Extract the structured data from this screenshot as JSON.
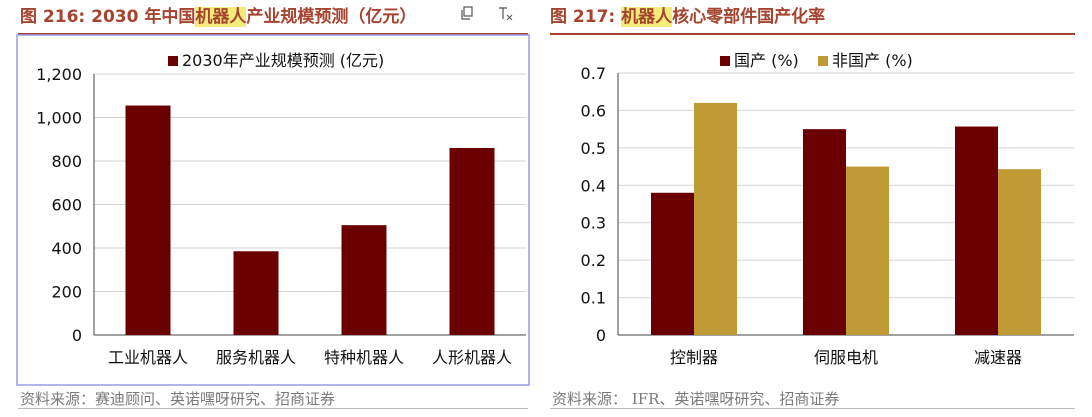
{
  "colors": {
    "dark_red": "#6b0000",
    "gold": "#c09a35",
    "title": "#a5432f",
    "highlight": "#f4ec7a"
  },
  "left": {
    "title_prefix": "图 216:",
    "title_pre": "2030 年中国",
    "title_hl": "机器人",
    "title_post": "产业规模预测（亿元）",
    "source": "资料来源：赛迪顾问、英诺嘿呀研究、招商证券",
    "icons": [
      "copy-icon",
      "text-cursor-icon"
    ]
  },
  "right": {
    "title_prefix": "图 217:",
    "title_hl": "机器人",
    "title_post": "核心零部件国产化率",
    "source": "资料来源：  IFR、英诺嘿呀研究、招商证券"
  },
  "chart_data": [
    {
      "type": "bar",
      "categories": [
        "工业机器人",
        "服务机器人",
        "特种机器人",
        "人形机器人"
      ],
      "series": [
        {
          "name": "2030年产业规模预测 (亿元)",
          "values": [
            1055,
            385,
            505,
            860
          ],
          "color": "#6b0000"
        }
      ],
      "ylim": [
        0,
        1200
      ],
      "yticks": [
        0,
        200,
        400,
        600,
        800,
        1000,
        1200
      ],
      "ytick_labels": [
        "0",
        "200",
        "400",
        "600",
        "800",
        "1,000",
        "1,200"
      ],
      "grid": true,
      "legend": "top"
    },
    {
      "type": "bar",
      "categories": [
        "控制器",
        "伺服电机",
        "减速器"
      ],
      "series": [
        {
          "name": "国产 (%)",
          "values": [
            0.38,
            0.55,
            0.557
          ],
          "color": "#6b0000"
        },
        {
          "name": "非国产 (%)",
          "values": [
            0.62,
            0.45,
            0.443
          ],
          "color": "#c09a35"
        }
      ],
      "ylim": [
        0,
        0.7
      ],
      "yticks": [
        0,
        0.1,
        0.2,
        0.3,
        0.4,
        0.5,
        0.6,
        0.7
      ],
      "ytick_labels": [
        "0",
        "0.1",
        "0.2",
        "0.3",
        "0.4",
        "0.5",
        "0.6",
        "0.7"
      ],
      "grid": true,
      "legend": "top"
    }
  ]
}
